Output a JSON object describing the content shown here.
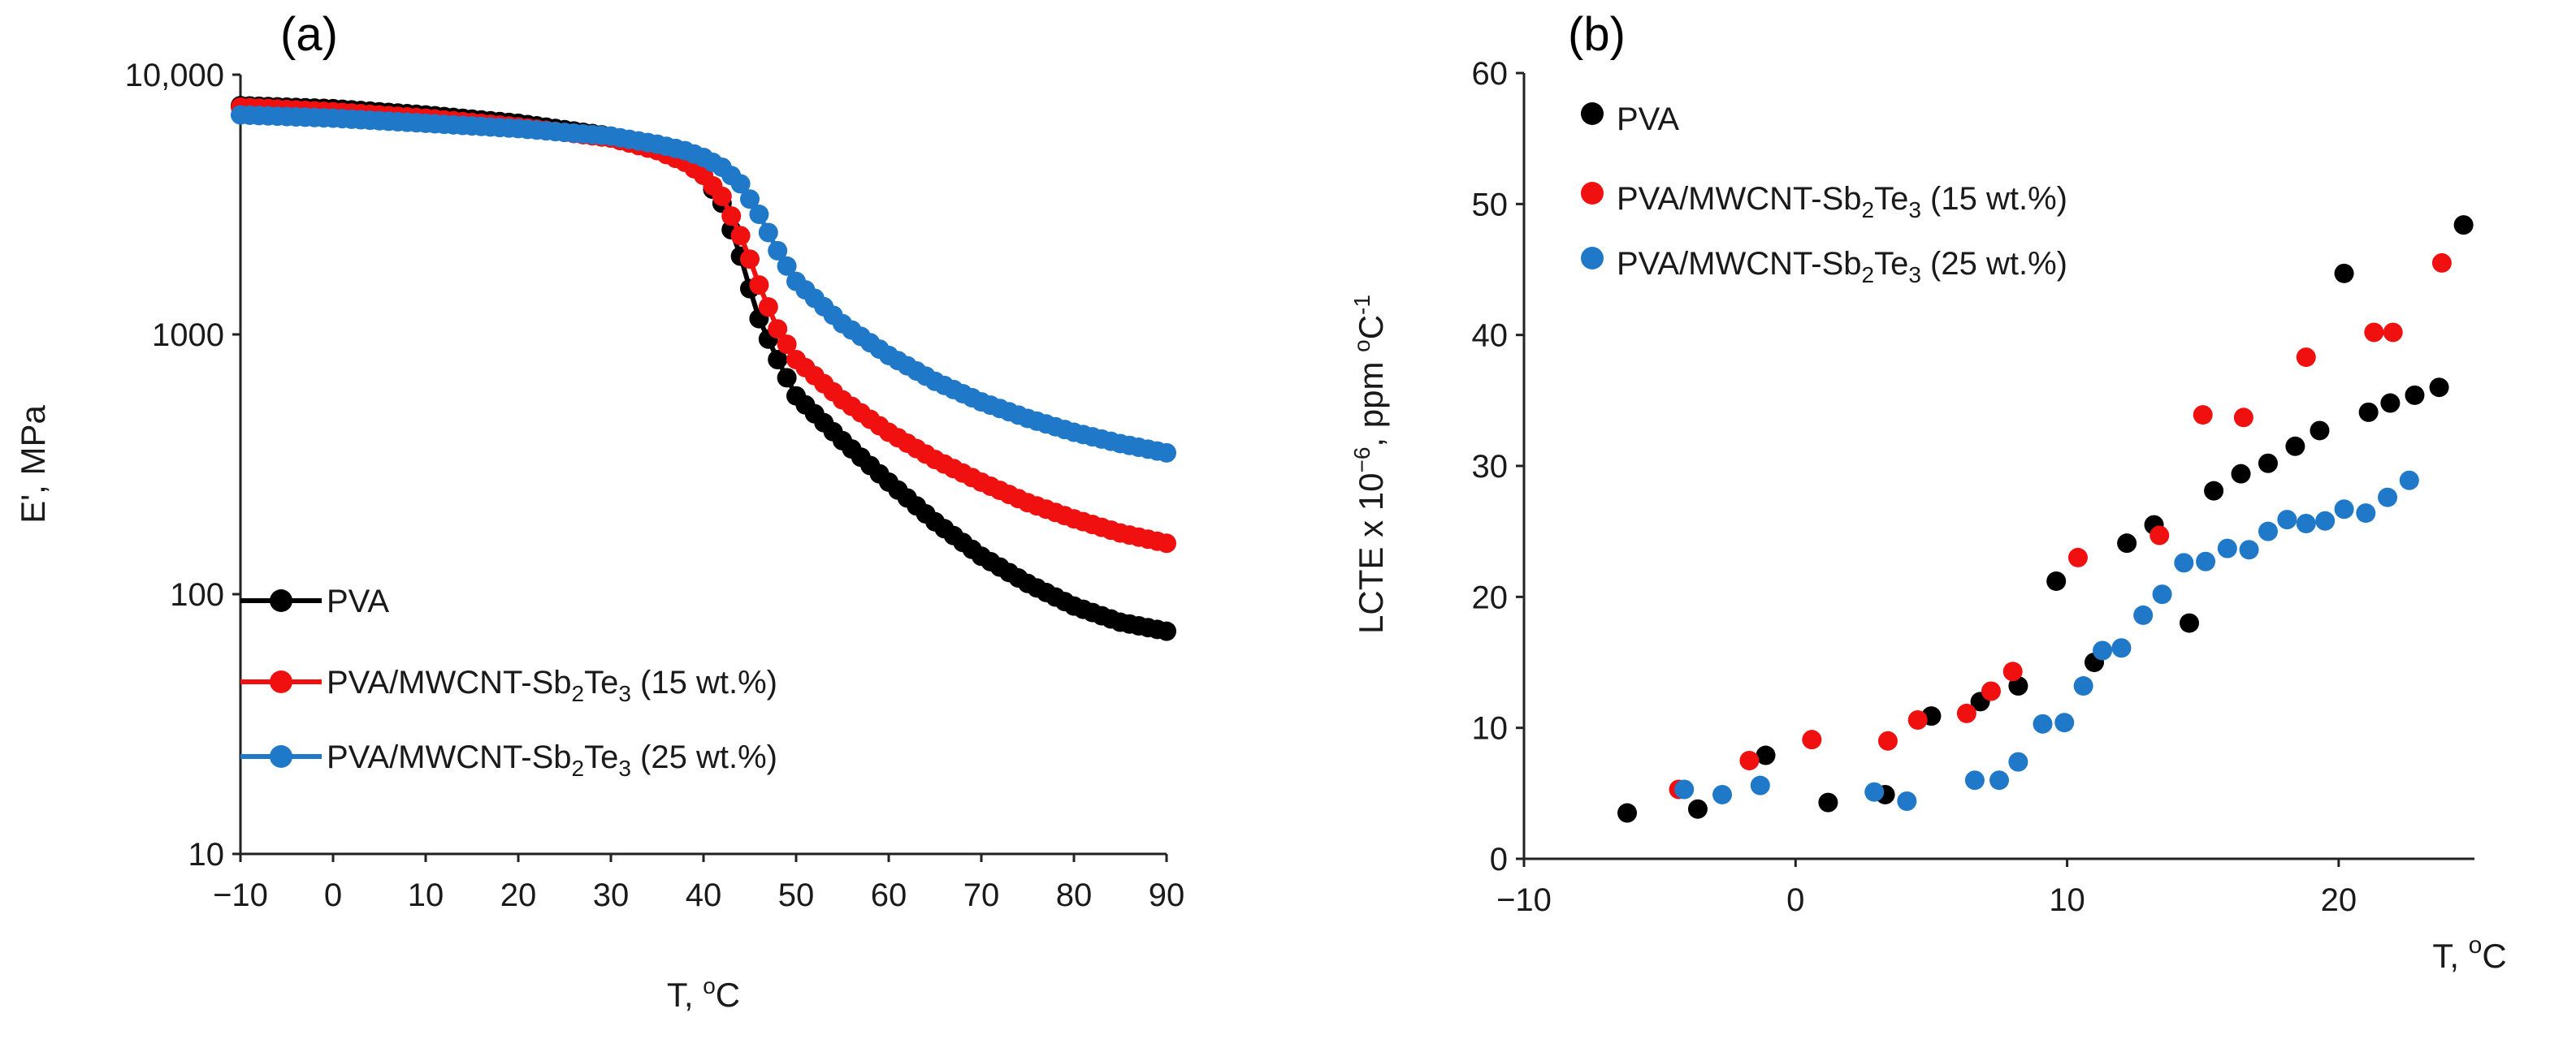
{
  "colors": {
    "pva": "#000000",
    "red": "#f01010",
    "blue": "#1f78c8"
  },
  "chart_data": [
    {
      "type": "line",
      "panel": "(a)",
      "xlabel": "T, °C",
      "xlabel_parts": {
        "pre": "T, ",
        "sup": "o",
        "post": "C"
      },
      "ylabel": "E', MPa",
      "yscale": "log",
      "xlim": [
        -10,
        90
      ],
      "ylim": [
        10,
        10000
      ],
      "xticks": [
        -10,
        0,
        10,
        20,
        30,
        40,
        50,
        60,
        70,
        80,
        90
      ],
      "xtick_labels": [
        "−10",
        "0",
        "10",
        "20",
        "30",
        "40",
        "50",
        "60",
        "70",
        "80",
        "90"
      ],
      "yticks": [
        10,
        100,
        1000,
        10000
      ],
      "ytick_labels": [
        "10",
        "100",
        "1000",
        "10,000"
      ],
      "legend_position": "bottom-left",
      "series": [
        {
          "key": "pva",
          "name": "PVA",
          "label_main": "PVA",
          "label_sub": "",
          "label_end": "",
          "x": [
            -10,
            0,
            10,
            20,
            30,
            35,
            38,
            40,
            42,
            44,
            45,
            46,
            48,
            50,
            55,
            60,
            65,
            70,
            75,
            80,
            85,
            90
          ],
          "values": [
            7600,
            7400,
            7000,
            6500,
            5800,
            5200,
            4700,
            4100,
            3200,
            2000,
            1500,
            1150,
            800,
            580,
            390,
            270,
            190,
            140,
            110,
            90,
            78,
            72
          ]
        },
        {
          "key": "red",
          "name": "PVA/MWCNT-Sb2Te3 (15 wt.%)",
          "label_main": "PVA/MWCNT-Sb",
          "label_sub": "2",
          "label_end": "Te",
          "label_sub2": "3",
          "label_tail": " (15 wt.%)",
          "x": [
            -10,
            0,
            10,
            20,
            30,
            35,
            38,
            40,
            42,
            44,
            45,
            46,
            48,
            50,
            55,
            60,
            65,
            70,
            75,
            80,
            85,
            90
          ],
          "values": [
            7500,
            7200,
            6800,
            6300,
            5700,
            5100,
            4600,
            4100,
            3400,
            2400,
            1950,
            1550,
            1050,
            800,
            560,
            420,
            330,
            270,
            225,
            195,
            172,
            157
          ]
        },
        {
          "key": "blue",
          "name": "PVA/MWCNT-Sb2Te3 (25 wt.%)",
          "label_main": "PVA/MWCNT-Sb",
          "label_sub": "2",
          "label_end": "Te",
          "label_sub2": "3",
          "label_tail": " (25 wt.%)",
          "x": [
            -10,
            0,
            10,
            20,
            30,
            35,
            38,
            40,
            42,
            44,
            46,
            48,
            50,
            55,
            60,
            65,
            70,
            75,
            80,
            85,
            90
          ],
          "values": [
            7000,
            6800,
            6500,
            6200,
            5800,
            5400,
            5100,
            4800,
            4400,
            3800,
            2900,
            2100,
            1600,
            1100,
            830,
            660,
            550,
            475,
            420,
            380,
            350
          ]
        }
      ]
    },
    {
      "type": "scatter",
      "panel": "(b)",
      "xlabel": "T, °C",
      "xlabel_parts": {
        "pre": "T, ",
        "sup": "o",
        "post": "C"
      },
      "ylabel": "LCTE x 10⁻⁶, ppm °C⁻¹",
      "ylabel_parts": {
        "pre": "LCTE x 10",
        "sup1": "−6",
        "mid": ", ppm ",
        "sup2": "o",
        "mid2": "C",
        "sup3": "-1"
      },
      "xlim": [
        -10,
        25
      ],
      "ylim": [
        0,
        60
      ],
      "xticks": [
        -10,
        0,
        10,
        20
      ],
      "xtick_labels": [
        "−10",
        "0",
        "10",
        "20"
      ],
      "yticks": [
        0,
        10,
        20,
        30,
        40,
        50,
        60
      ],
      "ytick_labels": [
        "0",
        "10",
        "20",
        "30",
        "40",
        "50",
        "60"
      ],
      "legend_position": "top-left",
      "series": [
        {
          "key": "pva",
          "name": "PVA",
          "label_main": "PVA",
          "label_sub": "",
          "label_end": "",
          "points": [
            [
              -6.2,
              3.5
            ],
            [
              -3.6,
              3.8
            ],
            [
              -1.1,
              7.9
            ],
            [
              1.2,
              4.3
            ],
            [
              3.3,
              4.9
            ],
            [
              5.0,
              10.9
            ],
            [
              6.8,
              12.0
            ],
            [
              8.2,
              13.2
            ],
            [
              9.6,
              21.2
            ],
            [
              11.0,
              15.0
            ],
            [
              12.2,
              24.1
            ],
            [
              13.2,
              25.5
            ],
            [
              14.5,
              18.0
            ],
            [
              15.4,
              28.1
            ],
            [
              16.4,
              29.4
            ],
            [
              17.4,
              30.2
            ],
            [
              18.4,
              31.5
            ],
            [
              19.3,
              32.7
            ],
            [
              20.2,
              44.7
            ],
            [
              21.1,
              34.1
            ],
            [
              21.9,
              34.8
            ],
            [
              22.8,
              35.4
            ],
            [
              23.7,
              36.0
            ],
            [
              24.6,
              48.4
            ]
          ]
        },
        {
          "key": "red",
          "name": "PVA/MWCNT-Sb2Te3 (15 wt.%)",
          "label_main": "PVA/MWCNT-Sb",
          "label_sub": "2",
          "label_end": "Te",
          "label_sub2": "3",
          "label_tail": " (15 wt.%)",
          "points": [
            [
              -4.3,
              5.3
            ],
            [
              -1.7,
              7.5
            ],
            [
              0.6,
              9.1
            ],
            [
              3.4,
              9.0
            ],
            [
              4.5,
              10.6
            ],
            [
              6.3,
              11.1
            ],
            [
              7.2,
              12.8
            ],
            [
              8.0,
              14.3
            ],
            [
              10.4,
              23.0
            ],
            [
              13.4,
              24.7
            ],
            [
              15.0,
              33.9
            ],
            [
              16.5,
              33.7
            ],
            [
              18.8,
              38.3
            ],
            [
              21.3,
              40.2
            ],
            [
              22.0,
              40.2
            ],
            [
              23.8,
              45.5
            ]
          ]
        },
        {
          "key": "blue",
          "name": "PVA/MWCNT-Sb2Te3 (25 wt.%)",
          "label_main": "PVA/MWCNT-Sb",
          "label_sub": "2",
          "label_end": "Te",
          "label_sub2": "3",
          "label_tail": " (25 wt.%)",
          "points": [
            [
              -4.1,
              5.3
            ],
            [
              -2.7,
              4.9
            ],
            [
              -1.3,
              5.6
            ],
            [
              2.9,
              5.1
            ],
            [
              4.1,
              4.4
            ],
            [
              6.6,
              6.0
            ],
            [
              7.5,
              6.0
            ],
            [
              8.2,
              7.4
            ],
            [
              9.1,
              10.3
            ],
            [
              9.9,
              10.4
            ],
            [
              10.6,
              13.2
            ],
            [
              11.3,
              15.9
            ],
            [
              12.0,
              16.1
            ],
            [
              12.8,
              18.6
            ],
            [
              13.5,
              20.2
            ],
            [
              14.3,
              22.6
            ],
            [
              15.1,
              22.7
            ],
            [
              15.9,
              23.7
            ],
            [
              16.7,
              23.6
            ],
            [
              17.4,
              25.0
            ],
            [
              18.1,
              25.9
            ],
            [
              18.8,
              25.6
            ],
            [
              19.5,
              25.8
            ],
            [
              20.2,
              26.7
            ],
            [
              21.0,
              26.4
            ],
            [
              21.8,
              27.6
            ],
            [
              22.6,
              28.9
            ]
          ]
        }
      ]
    }
  ]
}
